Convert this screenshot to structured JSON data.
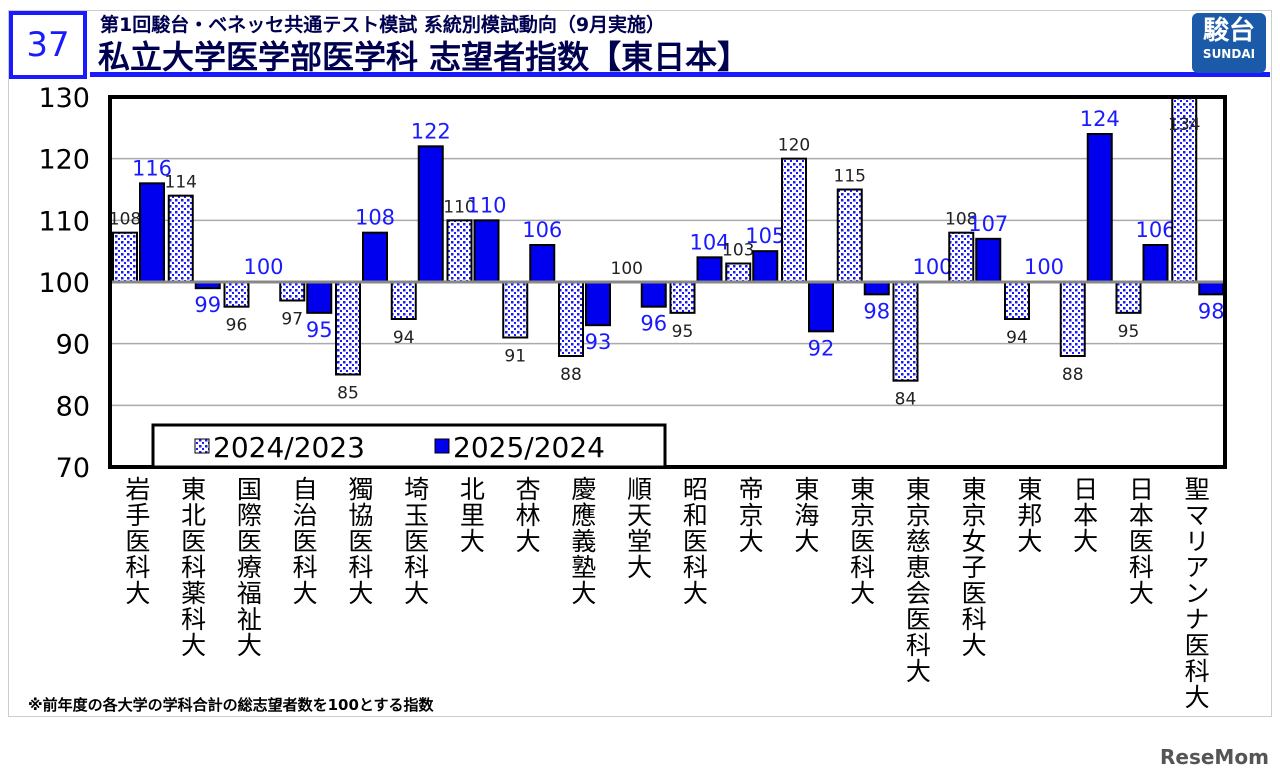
{
  "header": {
    "number": "37",
    "subtitle": "第1回駿台・ベネッセ共通テスト模試 系統別模試動向（9月実施）",
    "title": "私立大学医学部医学科 志望者指数【東日本】",
    "logo_kanji": "駿台",
    "logo_en": "SUNDAI"
  },
  "footnote": "※前年度の各大学の学科合計の総志望者数を100とする指数",
  "watermark": "ReseMom",
  "chart_data": {
    "type": "bar",
    "ylim": [
      70,
      130
    ],
    "yticks": [
      70,
      80,
      90,
      100,
      110,
      120,
      130
    ],
    "baseline": 100,
    "grid": true,
    "legend": "bottom-left",
    "categories": [
      "岩手医科大",
      "東北医科薬科大",
      "国際医療福祉大",
      "自治医科大",
      "獨協医科大",
      "埼玉医科大",
      "北里大",
      "杏林大",
      "慶應義塾大",
      "順天堂大",
      "昭和医科大",
      "帝京大",
      "東海大",
      "東京医科大",
      "東京慈恵会医科大",
      "東京女子医科大",
      "東邦大",
      "日本大",
      "日本医科大",
      "聖マリアンナ医科大"
    ],
    "series": [
      {
        "name": "2024/2023",
        "color": "#1a1aff",
        "pattern": "dotted",
        "label_color": "#222222",
        "values": [
          108,
          114,
          96,
          97,
          85,
          94,
          110,
          91,
          88,
          100,
          95,
          103,
          120,
          115,
          84,
          108,
          94,
          88,
          95,
          134
        ]
      },
      {
        "name": "2025/2024",
        "color": "#0000ee",
        "pattern": "solid",
        "label_color": "#1a1aff",
        "values": [
          116,
          99,
          100,
          95,
          108,
          122,
          110,
          106,
          93,
          96,
          104,
          105,
          92,
          98,
          100,
          107,
          100,
          124,
          106,
          98
        ]
      }
    ]
  }
}
